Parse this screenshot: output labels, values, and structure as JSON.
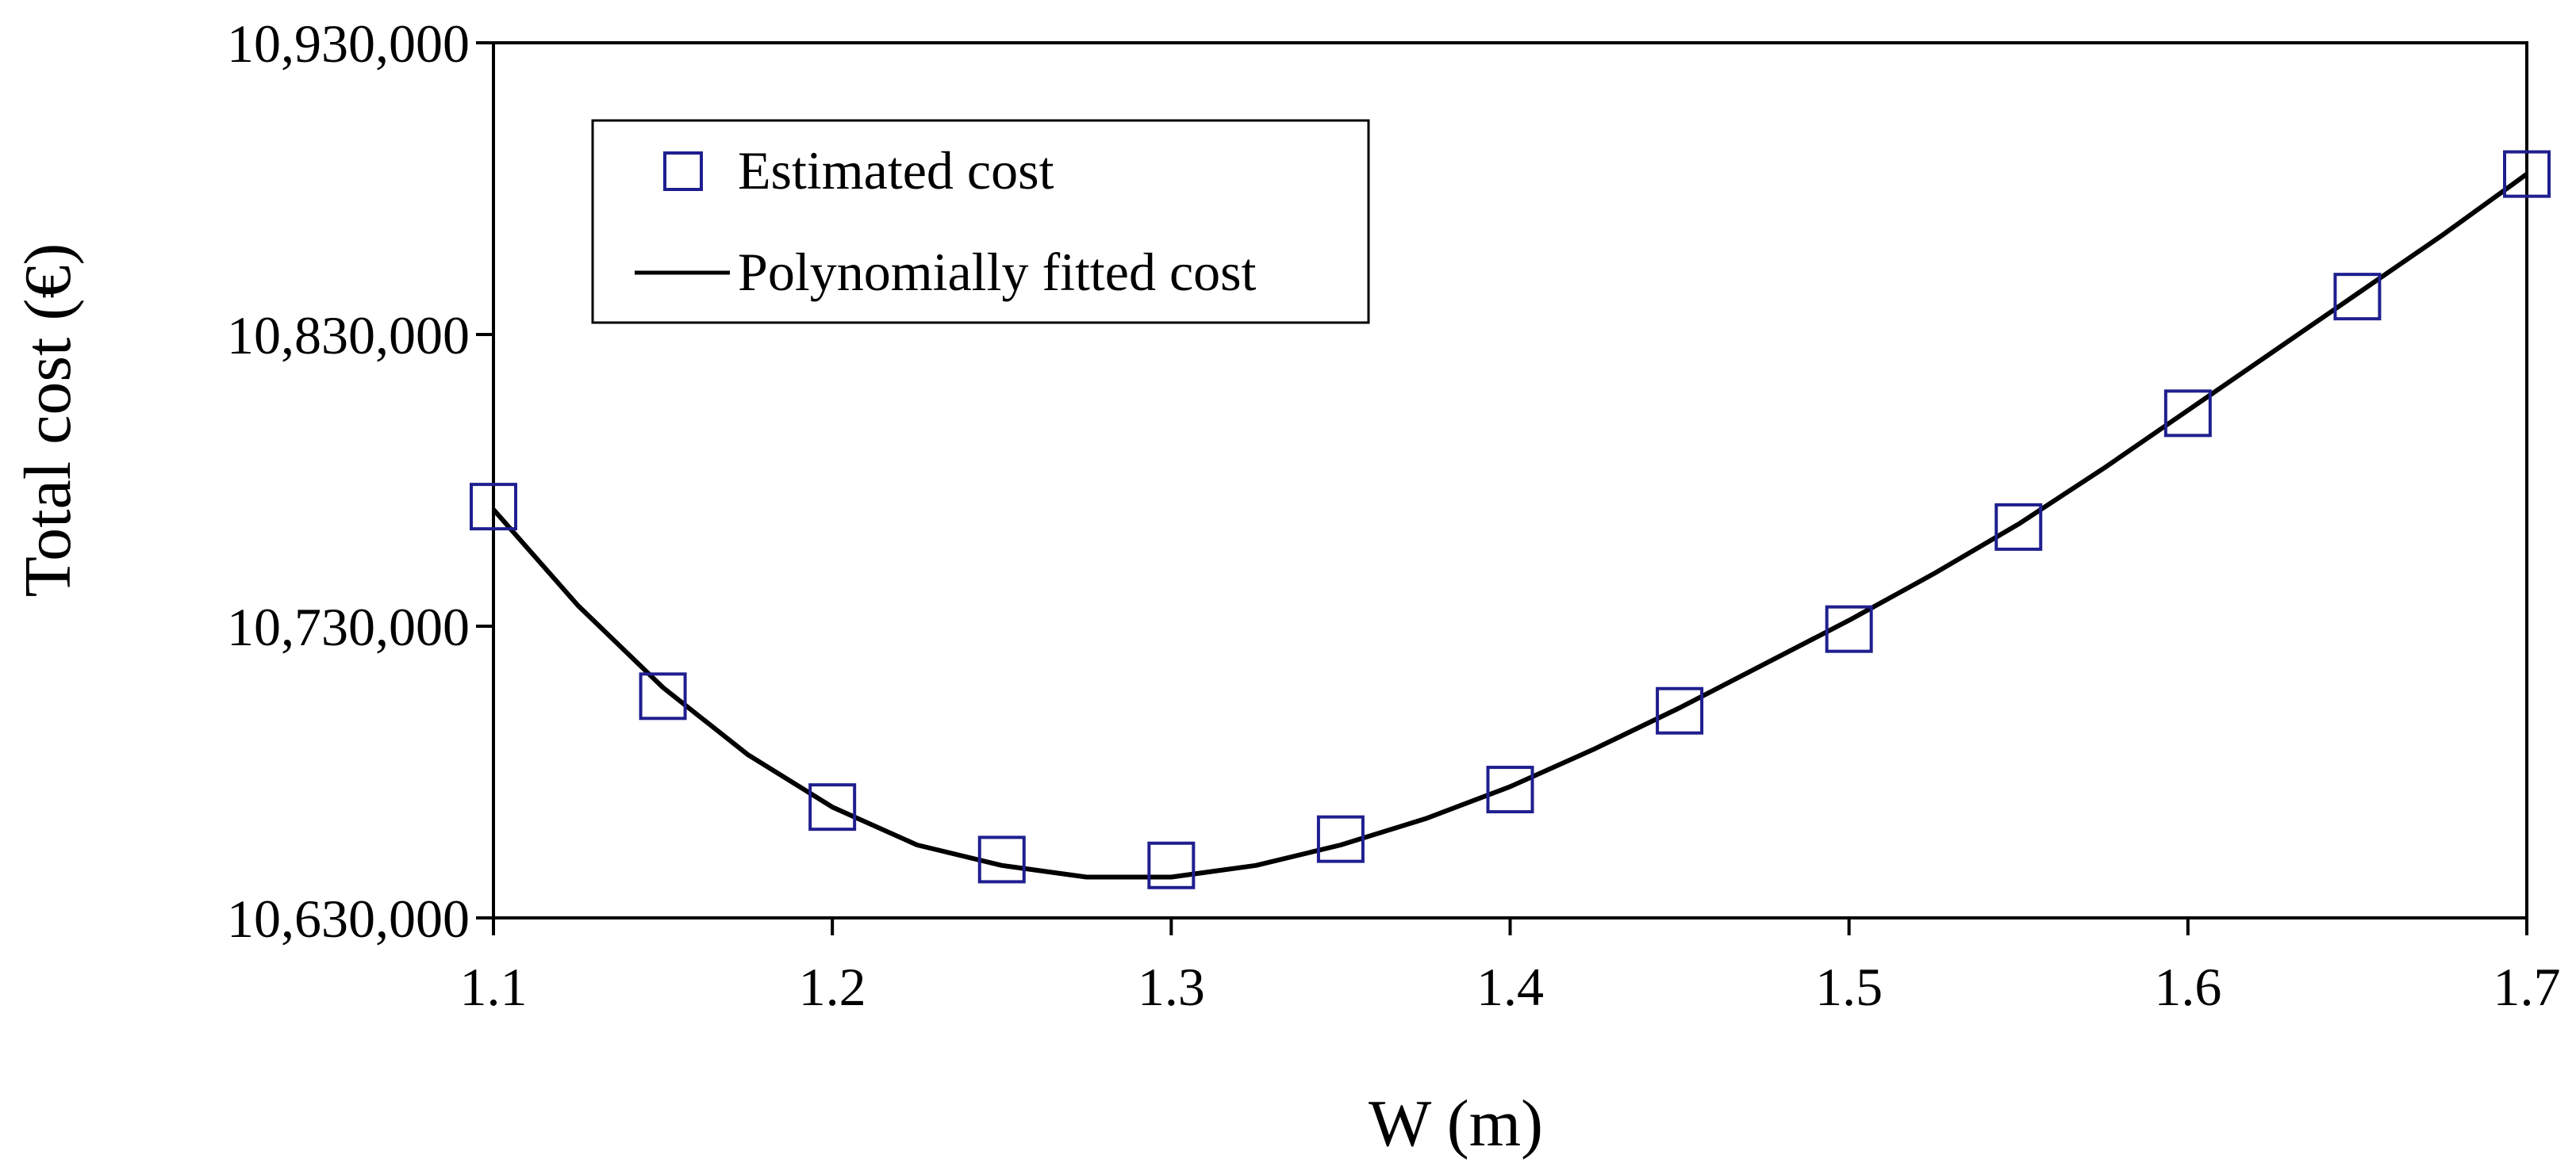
{
  "chart_data": {
    "type": "scatter",
    "title": "",
    "xlabel": "W (m)",
    "ylabel": "Total cost (€)",
    "xlim": [
      1.1,
      1.7
    ],
    "ylim": [
      10630000,
      10930000
    ],
    "x_ticks": [
      1.1,
      1.2,
      1.3,
      1.4,
      1.5,
      1.6,
      1.7
    ],
    "x_tick_labels": [
      "1.1",
      "1.2",
      "1.3",
      "1.4",
      "1.5",
      "1.6",
      "1.7"
    ],
    "y_ticks": [
      10630000,
      10730000,
      10830000,
      10930000
    ],
    "y_tick_labels": [
      "10,630,000",
      "10,730,000",
      "10,830,000",
      "10,930,000"
    ],
    "grid": false,
    "legend_position": "top-left",
    "series": [
      {
        "name": "Estimated cost",
        "kind": "markers",
        "marker": "open-square",
        "color": "#1f1f8f",
        "x": [
          1.1,
          1.15,
          1.2,
          1.25,
          1.3,
          1.35,
          1.4,
          1.45,
          1.5,
          1.55,
          1.6,
          1.65,
          1.7
        ],
        "values": [
          10771000,
          10706000,
          10668000,
          10650000,
          10648000,
          10657000,
          10674000,
          10701000,
          10729000,
          10764000,
          10803000,
          10843000,
          10885000
        ]
      },
      {
        "name": "Polynomially fitted cost",
        "kind": "line",
        "color": "#000000",
        "x": [
          1.1,
          1.125,
          1.15,
          1.175,
          1.2,
          1.225,
          1.25,
          1.275,
          1.3,
          1.325,
          1.35,
          1.375,
          1.4,
          1.425,
          1.45,
          1.475,
          1.5,
          1.525,
          1.55,
          1.575,
          1.6,
          1.625,
          1.65,
          1.675,
          1.7
        ],
        "values": [
          10770000,
          10737000,
          10709000,
          10686000,
          10668000,
          10655000,
          10648000,
          10644000,
          10644000,
          10648000,
          10655000,
          10664000,
          10675000,
          10688000,
          10702000,
          10717000,
          10732000,
          10748000,
          10765000,
          10784000,
          10804000,
          10824000,
          10844000,
          10864000,
          10885000
        ]
      }
    ]
  }
}
